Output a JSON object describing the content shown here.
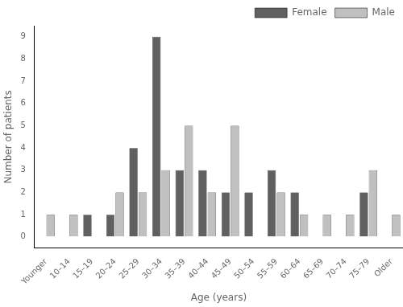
{
  "chart_data": {
    "type": "bar",
    "categories": [
      "Younger",
      "10–14",
      "15–19",
      "20–24",
      "25–29",
      "30–34",
      "35–39",
      "40–44",
      "45–49",
      "50–54",
      "55–59",
      "60–64",
      "65–69",
      "70–74",
      "75–79",
      "Older"
    ],
    "series": [
      {
        "name": "Female",
        "color": "#606060",
        "values": [
          0,
          0,
          1,
          1,
          4,
          9,
          3,
          3,
          2,
          2,
          3,
          2,
          0,
          0,
          2,
          0
        ]
      },
      {
        "name": "Male",
        "color": "#c0c0c0",
        "values": [
          1,
          1,
          0,
          2,
          2,
          3,
          5,
          2,
          5,
          0,
          2,
          1,
          1,
          1,
          3,
          1
        ]
      }
    ],
    "xlabel": "Age (years)",
    "ylabel": "Number of patients",
    "ylim": [
      -0.5,
      9.5
    ],
    "yticks": [
      0,
      1,
      2,
      3,
      4,
      5,
      6,
      7,
      8,
      9
    ],
    "legend": "upper right",
    "grid": false
  }
}
